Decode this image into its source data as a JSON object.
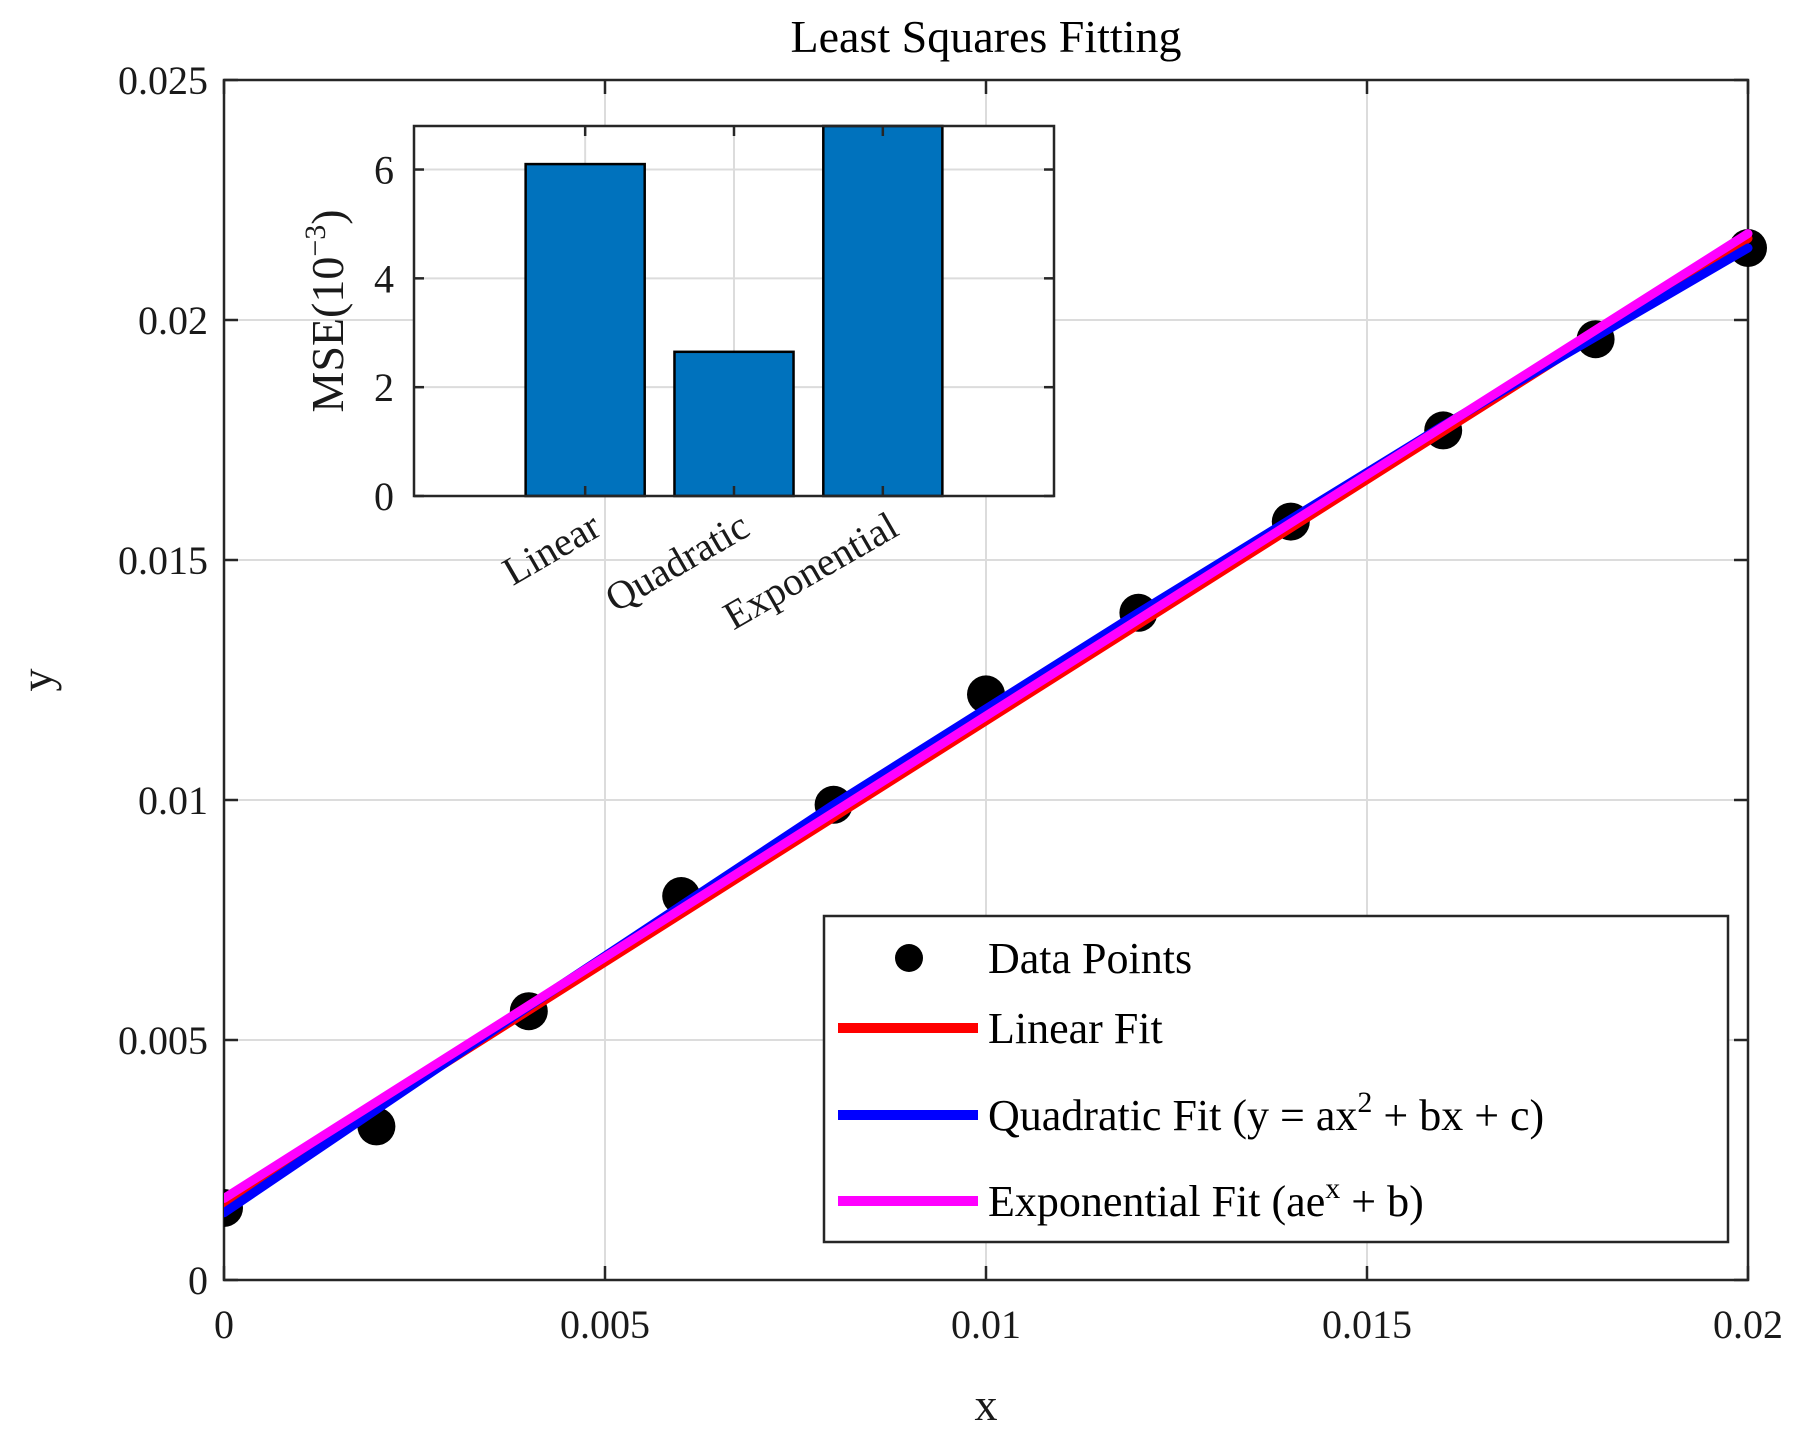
{
  "chart_data": [
    {
      "type": "scatter+line",
      "title": "Least Squares Fitting",
      "xlabel": "x",
      "ylabel": "y",
      "xlim": [
        0,
        0.02
      ],
      "ylim": [
        0,
        0.025
      ],
      "grid": true,
      "xticks": [
        {
          "value": 0,
          "label": "0"
        },
        {
          "value": 0.005,
          "label": "0.005"
        },
        {
          "value": 0.01,
          "label": "0.01"
        },
        {
          "value": 0.015,
          "label": "0.015"
        },
        {
          "value": 0.02,
          "label": "0.02"
        }
      ],
      "yticks": [
        {
          "value": 0,
          "label": "0"
        },
        {
          "value": 0.005,
          "label": "0.005"
        },
        {
          "value": 0.01,
          "label": "0.01"
        },
        {
          "value": 0.015,
          "label": "0.015"
        },
        {
          "value": 0.02,
          "label": "0.02"
        },
        {
          "value": 0.025,
          "label": "0.025"
        }
      ],
      "series": [
        {
          "name": "Data Points",
          "kind": "scatter",
          "color": "#000000",
          "x": [
            0,
            0.002,
            0.004,
            0.006,
            0.008,
            0.01,
            0.012,
            0.014,
            0.016,
            0.018,
            0.02
          ],
          "y": [
            0.0015,
            0.0032,
            0.0056,
            0.008,
            0.0099,
            0.0122,
            0.0139,
            0.0158,
            0.0177,
            0.0196,
            0.0215
          ]
        },
        {
          "name": "Linear Fit",
          "kind": "line",
          "color": "#ff0000",
          "x": [
            0,
            0.02
          ],
          "y": [
            0.0016,
            0.0217
          ]
        },
        {
          "name": "Quadratic Fit (y = ax",
          "name_sup": "2",
          "name_tail": " + bx + c)",
          "kind": "line",
          "color": "#0000ff",
          "x": [
            0,
            0.004,
            0.008,
            0.012,
            0.016,
            0.02
          ],
          "y": [
            0.0014,
            0.0057,
            0.0099,
            0.0139,
            0.0178,
            0.0215
          ]
        },
        {
          "name": "Exponential Fit (ae",
          "name_sup": "x",
          "name_tail": " + b)",
          "kind": "line",
          "color": "#ff00ff",
          "x": [
            0,
            0.02
          ],
          "y": [
            0.0017,
            0.0218
          ]
        }
      ],
      "legend_position": "bottom-right"
    },
    {
      "type": "bar",
      "position": "inset top-left",
      "ylabel": "MSE(10",
      "ylabel_sup": "−3",
      "ylabel_tail": ")",
      "categories": [
        "Linear",
        "Quadratic",
        "Exponential"
      ],
      "values": [
        6.1,
        2.65,
        6.8
      ],
      "ylim": [
        0,
        6.8
      ],
      "yticks": [
        {
          "value": 0,
          "label": "0"
        },
        {
          "value": 2,
          "label": "2"
        },
        {
          "value": 4,
          "label": "4"
        },
        {
          "value": 6,
          "label": "6"
        }
      ],
      "bar_color": "#0072bd",
      "grid": true
    }
  ]
}
